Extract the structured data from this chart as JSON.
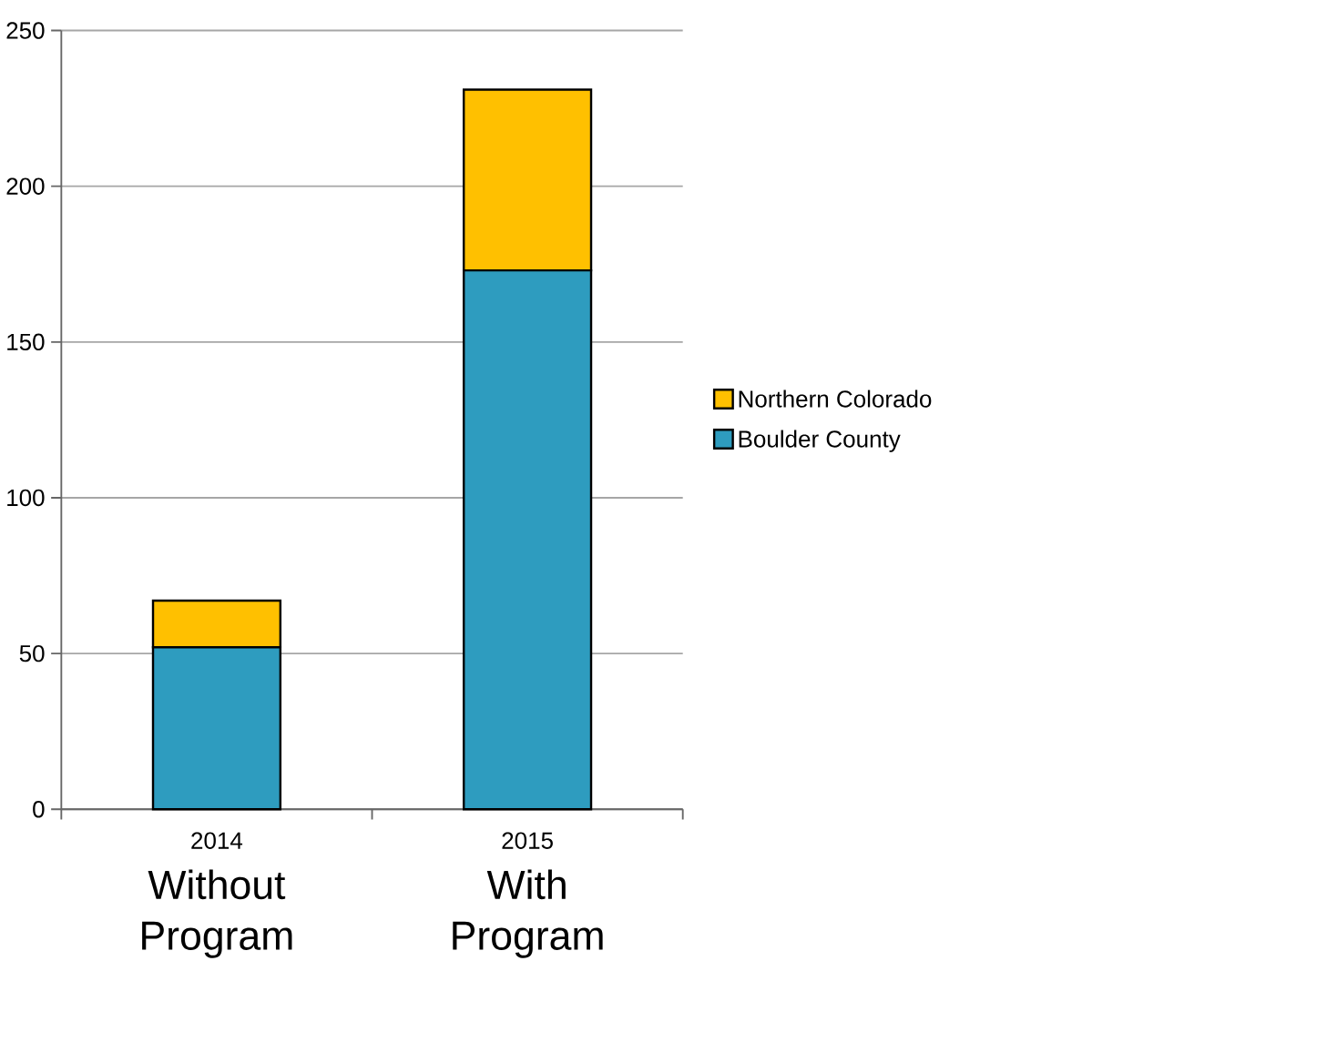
{
  "chart_data": {
    "type": "bar",
    "stacked": true,
    "categories": [
      "2014",
      "2015"
    ],
    "series": [
      {
        "name": "Boulder County",
        "color": "#2e9cbf",
        "values": [
          52,
          173
        ]
      },
      {
        "name": "Northern Colorado",
        "color": "#ffc000",
        "values": [
          15,
          58
        ]
      }
    ],
    "ylim": [
      0,
      250
    ],
    "yticks": [
      0,
      50,
      100,
      150,
      200,
      250
    ],
    "grid": "y",
    "legend": "right",
    "annotations": [
      "Without Program",
      "With Program"
    ]
  }
}
